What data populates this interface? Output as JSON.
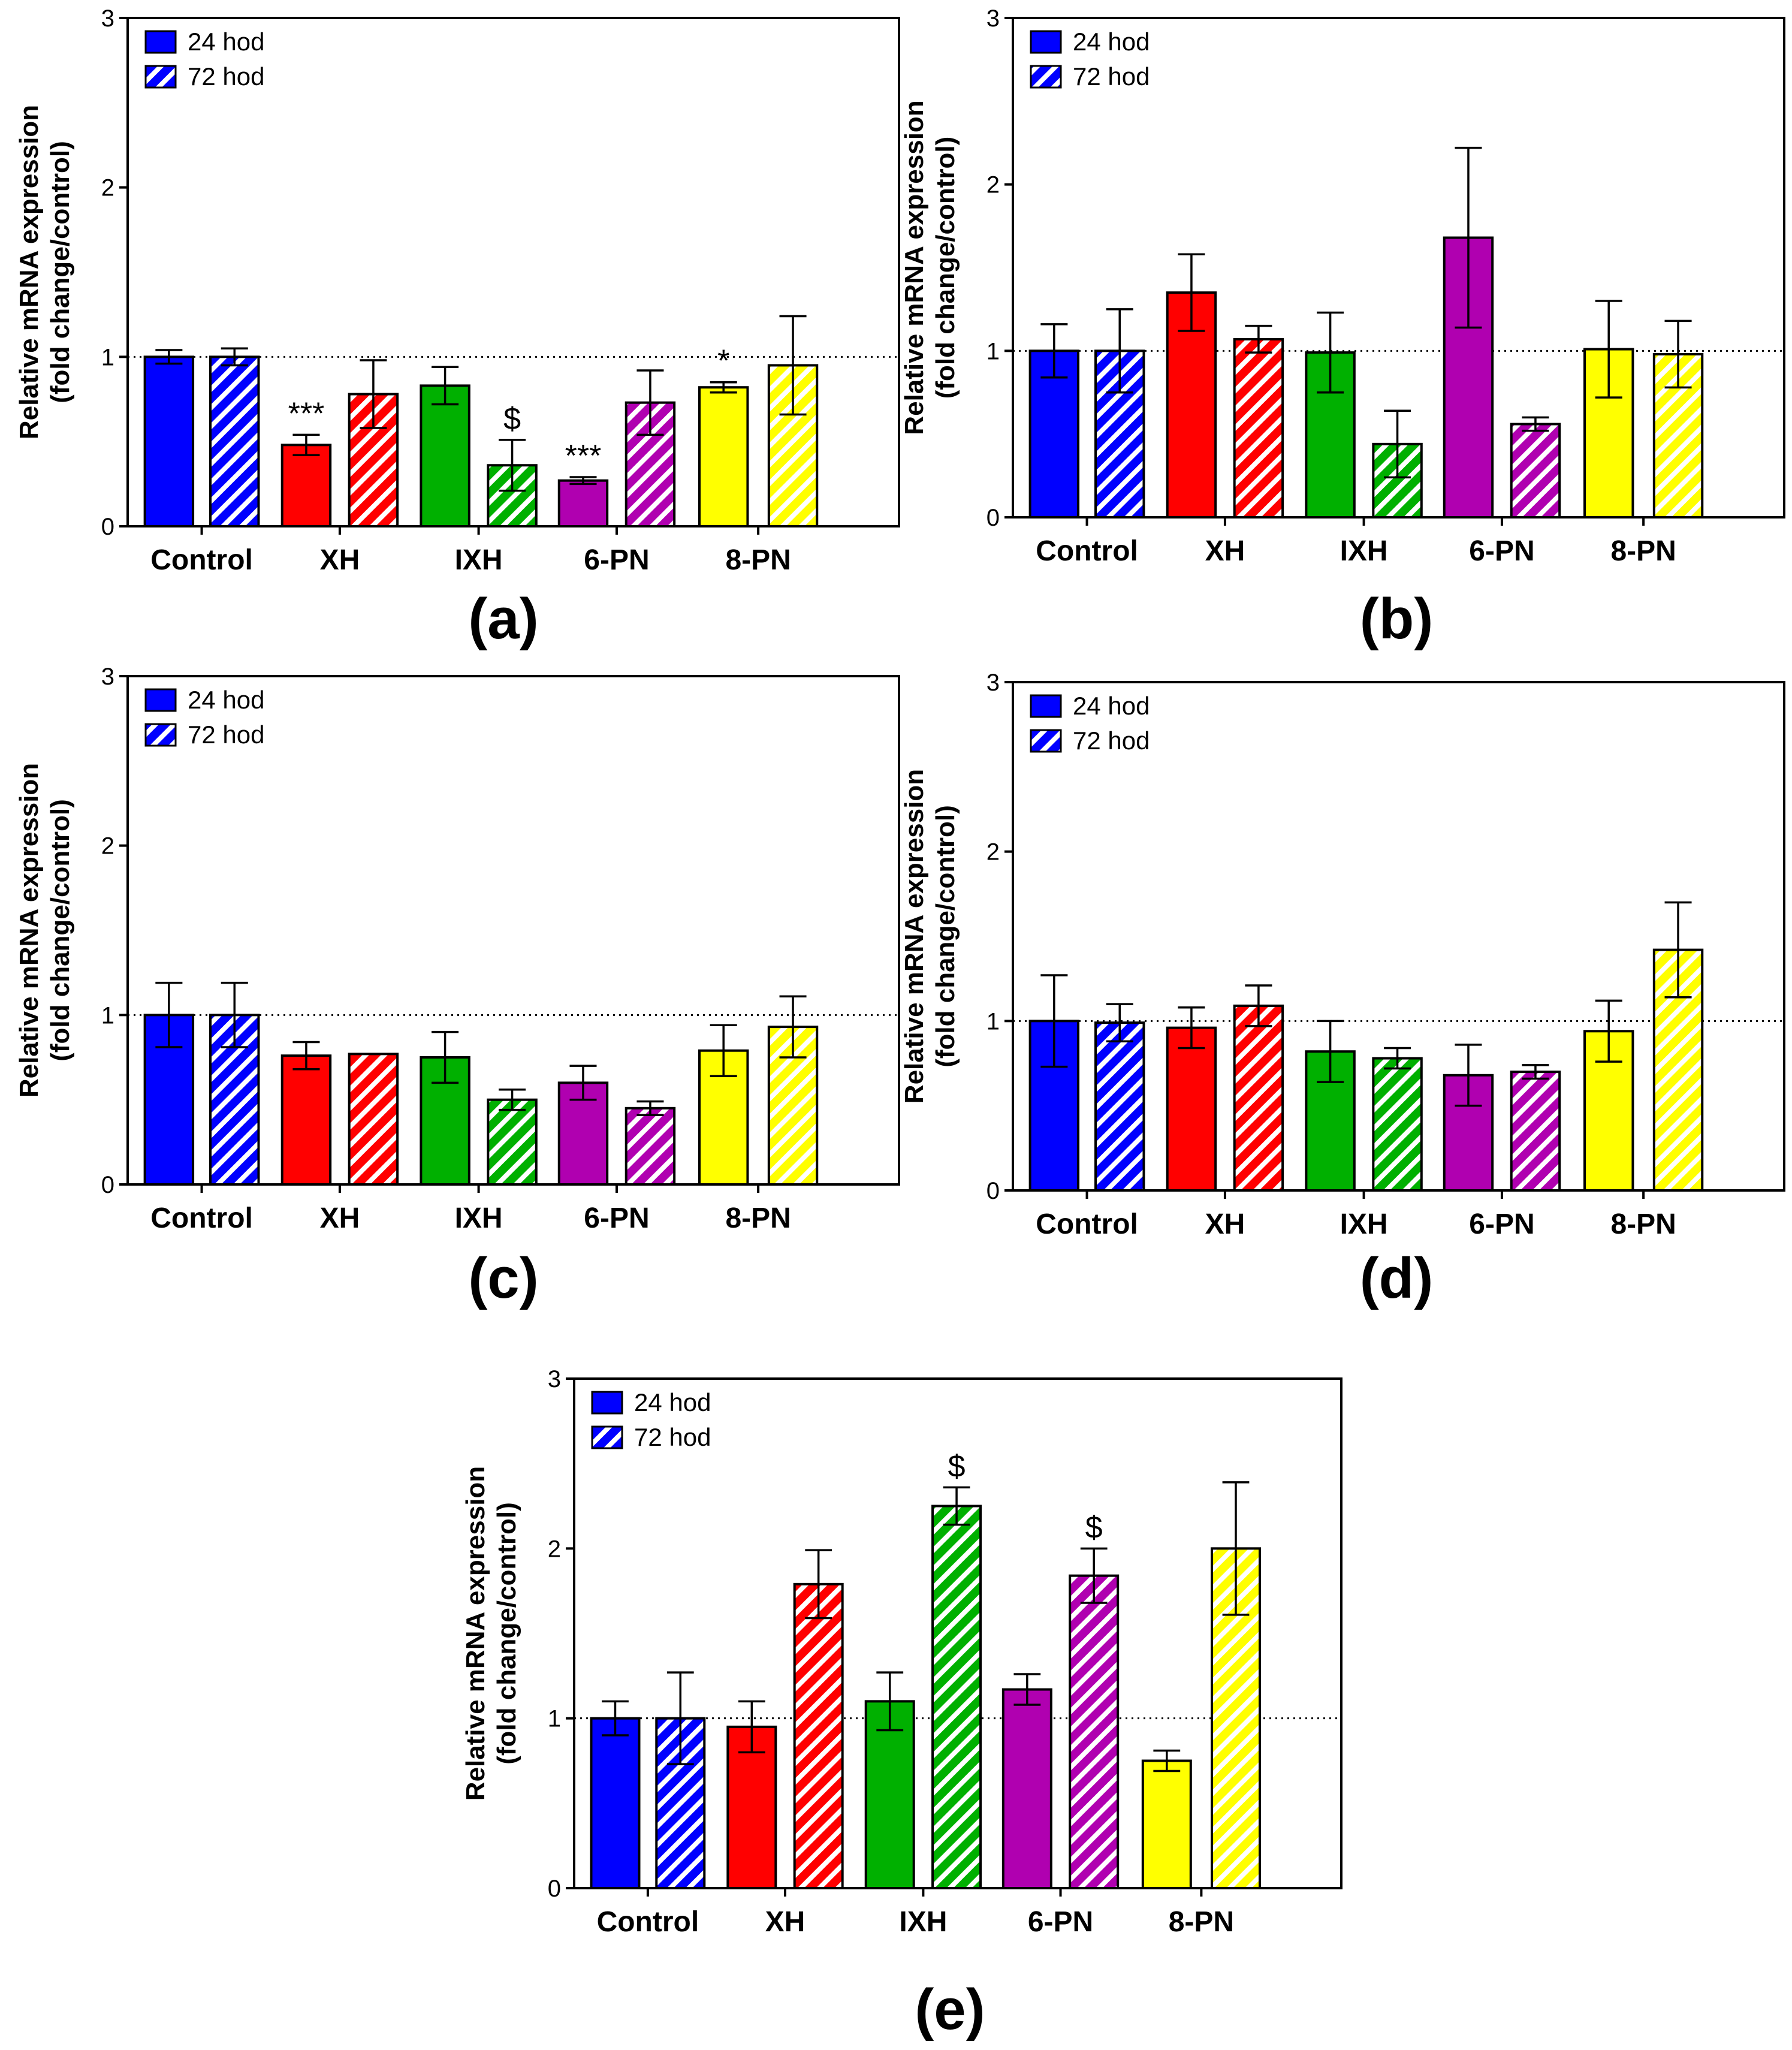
{
  "chart_data": [
    {
      "type": "bar",
      "panel_label": "(a)",
      "ylabel": [
        "Relative mRNA expression",
        "(fold change/control)"
      ],
      "ylim": [
        0,
        3
      ],
      "yticks": [
        "0",
        "1",
        "2",
        "3"
      ],
      "reference_line": 1,
      "categories": [
        "Control",
        "XH",
        "IXH",
        "6-PN",
        "8-PN"
      ],
      "colors": [
        "#0000ff",
        "#ff0000",
        "#00b000",
        "#b000b0",
        "#ffff00"
      ],
      "legend_position": "top-left",
      "series": [
        {
          "name": "24 hod",
          "pattern": "solid",
          "values": [
            1.0,
            0.48,
            0.83,
            0.27,
            0.82
          ],
          "errors": [
            0.04,
            0.06,
            0.11,
            0.02,
            0.03
          ],
          "annotations": [
            "",
            "***",
            "",
            "***",
            "*"
          ]
        },
        {
          "name": "72 hod",
          "pattern": "hatched",
          "values": [
            1.0,
            0.78,
            0.36,
            0.73,
            0.95
          ],
          "errors": [
            0.05,
            0.2,
            0.15,
            0.19,
            0.29
          ],
          "annotations": [
            "",
            "",
            "$",
            "",
            ""
          ]
        }
      ]
    },
    {
      "type": "bar",
      "panel_label": "(b)",
      "ylabel": [
        "Relative mRNA expression",
        "(fold change/control)"
      ],
      "ylim": [
        0,
        3
      ],
      "yticks": [
        "0",
        "1",
        "2",
        "3"
      ],
      "reference_line": 1,
      "categories": [
        "Control",
        "XH",
        "IXH",
        "6-PN",
        "8-PN"
      ],
      "colors": [
        "#0000ff",
        "#ff0000",
        "#00b000",
        "#b000b0",
        "#ffff00"
      ],
      "legend_position": "top-left",
      "series": [
        {
          "name": "24 hod",
          "pattern": "solid",
          "values": [
            1.0,
            1.35,
            0.99,
            1.68,
            1.01
          ],
          "errors": [
            0.16,
            0.23,
            0.24,
            0.54,
            0.29
          ],
          "annotations": [
            "",
            "",
            "",
            "",
            ""
          ]
        },
        {
          "name": "72 hod",
          "pattern": "hatched",
          "values": [
            1.0,
            1.07,
            0.44,
            0.56,
            0.98
          ],
          "errors": [
            0.25,
            0.08,
            0.2,
            0.04,
            0.2
          ],
          "annotations": [
            "",
            "",
            "",
            "",
            ""
          ]
        }
      ]
    },
    {
      "type": "bar",
      "panel_label": "(c)",
      "ylabel": [
        "Relative mRNA expression",
        "(fold change/control)"
      ],
      "ylim": [
        0,
        3
      ],
      "yticks": [
        "0",
        "1",
        "2",
        "3"
      ],
      "reference_line": 1,
      "categories": [
        "Control",
        "XH",
        "IXH",
        "6-PN",
        "8-PN"
      ],
      "colors": [
        "#0000ff",
        "#ff0000",
        "#00b000",
        "#b000b0",
        "#ffff00"
      ],
      "legend_position": "top-left",
      "series": [
        {
          "name": "24 hod",
          "pattern": "solid",
          "values": [
            1.0,
            0.76,
            0.75,
            0.6,
            0.79
          ],
          "errors": [
            0.19,
            0.08,
            0.15,
            0.1,
            0.15
          ],
          "annotations": [
            "",
            "",
            "",
            "",
            ""
          ]
        },
        {
          "name": "72 hod",
          "pattern": "hatched",
          "values": [
            1.0,
            0.77,
            0.5,
            0.45,
            0.93
          ],
          "errors": [
            0.19,
            0.0,
            0.06,
            0.04,
            0.18
          ],
          "annotations": [
            "",
            "",
            "",
            "",
            ""
          ]
        }
      ]
    },
    {
      "type": "bar",
      "panel_label": "(d)",
      "ylabel": [
        "Relative mRNA expression",
        "(fold change/control)"
      ],
      "ylim": [
        0,
        3
      ],
      "yticks": [
        "0",
        "1",
        "2",
        "3"
      ],
      "reference_line": 1,
      "categories": [
        "Control",
        "XH",
        "IXH",
        "6-PN",
        "8-PN"
      ],
      "colors": [
        "#0000ff",
        "#ff0000",
        "#00b000",
        "#b000b0",
        "#ffff00"
      ],
      "legend_position": "top-left",
      "series": [
        {
          "name": "24 hod",
          "pattern": "solid",
          "values": [
            1.0,
            0.96,
            0.82,
            0.68,
            0.94
          ],
          "errors": [
            0.27,
            0.12,
            0.18,
            0.18,
            0.18
          ],
          "annotations": [
            "",
            "",
            "",
            "",
            ""
          ]
        },
        {
          "name": "72 hod",
          "pattern": "hatched",
          "values": [
            0.99,
            1.09,
            0.78,
            0.7,
            1.42
          ],
          "errors": [
            0.11,
            0.12,
            0.06,
            0.04,
            0.28
          ],
          "annotations": [
            "",
            "",
            "",
            "",
            ""
          ]
        }
      ]
    },
    {
      "type": "bar",
      "panel_label": "(e)",
      "ylabel": [
        "Relative mRNA expression",
        "(fold change/control)"
      ],
      "ylim": [
        0,
        3
      ],
      "yticks": [
        "0",
        "1",
        "2",
        "3"
      ],
      "reference_line": 1,
      "categories": [
        "Control",
        "XH",
        "IXH",
        "6-PN",
        "8-PN"
      ],
      "colors": [
        "#0000ff",
        "#ff0000",
        "#00b000",
        "#b000b0",
        "#ffff00"
      ],
      "legend_position": "top-left",
      "series": [
        {
          "name": "24 hod",
          "pattern": "solid",
          "values": [
            1.0,
            0.95,
            1.1,
            1.17,
            0.75
          ],
          "errors": [
            0.1,
            0.15,
            0.17,
            0.09,
            0.06
          ],
          "annotations": [
            "",
            "",
            "",
            "",
            ""
          ]
        },
        {
          "name": "72 hod",
          "pattern": "hatched",
          "values": [
            1.0,
            1.79,
            2.25,
            1.84,
            2.0
          ],
          "errors": [
            0.27,
            0.2,
            0.11,
            0.16,
            0.39
          ],
          "annotations": [
            "",
            "",
            "$",
            "$",
            ""
          ]
        }
      ]
    }
  ]
}
